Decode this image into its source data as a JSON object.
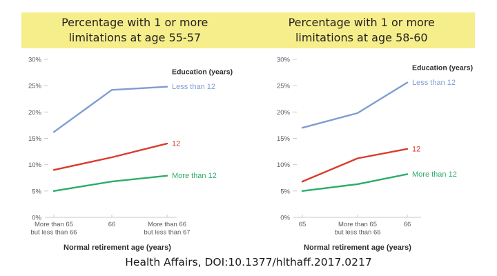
{
  "page": {
    "citation": "Health Affairs, DOI:10.1377/hlthaff.2017.0217"
  },
  "colors": {
    "band_yellow": "#f6ee8a",
    "title_text": "#221f20",
    "blue": "#7e9dd2",
    "red": "#d93b2b",
    "green": "#2bad68",
    "axis_gray": "#c9cacc",
    "tick_text": "#58595b",
    "label_dark": "#2e2d2f"
  },
  "chart_data": [
    {
      "type": "line",
      "title_line1": "Percentage with 1 or more",
      "title_line2": "limitations at age 55-57",
      "legend_title": "Education (years)",
      "xlabel": "Normal retirement age (years)",
      "ylabel": "",
      "ylim": [
        0,
        30
      ],
      "grid": false,
      "legend_position": "right-of-line-ends",
      "ytick_labels": [
        "30%",
        "25%",
        "20%",
        "15%",
        "10%",
        "5%",
        "0%"
      ],
      "ytick_values": [
        30,
        25,
        20,
        15,
        10,
        5,
        0
      ],
      "categories": [
        [
          "More than 65",
          "but less than 66"
        ],
        [
          "66"
        ],
        [
          "More than 66",
          "but less than 67"
        ]
      ],
      "series": [
        {
          "name": "Less than 12",
          "color": "#7e9dd2",
          "values": [
            16.2,
            24.2,
            24.8
          ]
        },
        {
          "name": "12",
          "color": "#d93b2b",
          "values": [
            9.0,
            11.4,
            14.0
          ]
        },
        {
          "name": "More than 12",
          "color": "#2bad68",
          "values": [
            5.0,
            6.8,
            7.9
          ]
        }
      ]
    },
    {
      "type": "line",
      "title_line1": "Percentage with 1 or more",
      "title_line2": "limitations at age 58-60",
      "legend_title": "Education (years)",
      "xlabel": "Normal retirement age (years)",
      "ylabel": "",
      "ylim": [
        0,
        30
      ],
      "grid": false,
      "legend_position": "right-of-line-ends",
      "ytick_labels": [
        "30%",
        "25%",
        "20%",
        "15%",
        "10%",
        "5%",
        "0%"
      ],
      "ytick_values": [
        30,
        25,
        20,
        15,
        10,
        5,
        0
      ],
      "categories": [
        [
          "65"
        ],
        [
          "More than 65",
          "but less than 66"
        ],
        [
          "66"
        ]
      ],
      "series": [
        {
          "name": "Less than 12",
          "color": "#7e9dd2",
          "values": [
            17.0,
            19.8,
            25.6
          ]
        },
        {
          "name": "12",
          "color": "#d93b2b",
          "values": [
            6.8,
            11.2,
            13.0
          ]
        },
        {
          "name": "More than 12",
          "color": "#2bad68",
          "values": [
            5.0,
            6.3,
            8.2
          ]
        }
      ]
    }
  ]
}
